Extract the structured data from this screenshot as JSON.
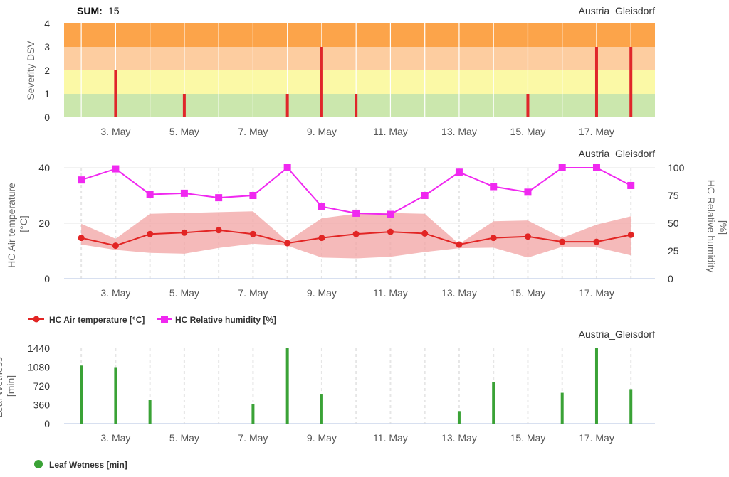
{
  "colors": {
    "band4": "#fca44a",
    "band3": "#fdcda0",
    "band2": "#fbf9a6",
    "band1": "#cbe7ad",
    "dsv_bar": "#e0262a",
    "temp": "#e22524",
    "temp_range": "#f2a3a3",
    "humidity": "#f028f0",
    "wetness": "#3aa236",
    "grid": "#e6e6e6",
    "axis_line": "#ccd6eb",
    "text": "#555555"
  },
  "header": {
    "sum_label": "SUM:",
    "sum_value": "15",
    "station": "Austria_Gleisdorf"
  },
  "x_tick_labels": [
    "3. May",
    "5. May",
    "7. May",
    "9. May",
    "11. May",
    "13. May",
    "15. May",
    "17. May"
  ],
  "chart_data": [
    {
      "type": "bar",
      "title": "Austria_Gleisdorf",
      "ylabel": "Severity DSV",
      "ylim": [
        0,
        4
      ],
      "yticks": [
        "0",
        "1",
        "2",
        "3",
        "4"
      ],
      "bands": [
        {
          "from": 0,
          "to": 1,
          "color": "band1"
        },
        {
          "from": 1,
          "to": 2,
          "color": "band2"
        },
        {
          "from": 2,
          "to": 3,
          "color": "band3"
        },
        {
          "from": 3,
          "to": 4,
          "color": "band4"
        }
      ],
      "x": [
        2,
        3,
        4,
        5,
        6,
        7,
        8,
        9,
        10,
        11,
        12,
        13,
        14,
        15,
        16,
        17,
        18
      ],
      "values": [
        0,
        2,
        0,
        1,
        0,
        0,
        1,
        3,
        1,
        0,
        0,
        0,
        0,
        1,
        0,
        3,
        3
      ]
    },
    {
      "type": "line",
      "title": "Austria_Gleisdorf",
      "ylabel": "HC Air temperature [°C]",
      "ylabel2": "HC Relative humidity [%]",
      "ylim": [
        0,
        40
      ],
      "ylim2": [
        0,
        100
      ],
      "yticks": [
        "0",
        "20",
        "40"
      ],
      "yticks2": [
        "0",
        "25",
        "50",
        "75",
        "100"
      ],
      "x": [
        2,
        3,
        4,
        5,
        6,
        7,
        8,
        9,
        10,
        11,
        12,
        13,
        14,
        15,
        16,
        17,
        18
      ],
      "series": [
        {
          "name": "HC Air temperature [°C]",
          "values": [
            14.7,
            11.9,
            16.1,
            16.6,
            17.5,
            16.1,
            12.8,
            14.7,
            16.1,
            16.9,
            16.3,
            12.3,
            14.7,
            15.2,
            13.3,
            13.3,
            15.8
          ]
        },
        {
          "name": "HC Relative humidity [%]",
          "axis": "right",
          "values": [
            89,
            99,
            76,
            77,
            73,
            75,
            100,
            65,
            59,
            58,
            75,
            96,
            83,
            78,
            100,
            100,
            84
          ]
        }
      ],
      "range": {
        "name": "HC Air temperature range",
        "low": [
          12.3,
          10.4,
          9.3,
          9.0,
          11.1,
          12.6,
          11.9,
          7.6,
          7.3,
          7.9,
          9.6,
          11.0,
          11.2,
          7.6,
          11.5,
          11.3,
          8.4
        ],
        "high": [
          19.8,
          14.4,
          23.4,
          23.7,
          24.0,
          24.3,
          13.5,
          21.8,
          23.4,
          23.7,
          23.4,
          12.5,
          20.7,
          21.0,
          14.7,
          19.5,
          22.5
        ]
      },
      "legend": [
        "HC Air temperature [°C]",
        "HC Relative humidity [%]"
      ]
    },
    {
      "type": "bar",
      "title": "Austria_Gleisdorf",
      "ylabel": "Leaf Wetness [min]",
      "ylim": [
        0,
        1440
      ],
      "yticks": [
        "0",
        "360",
        "720",
        "1080",
        "1440"
      ],
      "x": [
        2,
        3,
        4,
        5,
        6,
        7,
        8,
        9,
        10,
        11,
        12,
        13,
        14,
        15,
        16,
        17,
        18
      ],
      "values": [
        1110,
        1080,
        450,
        0,
        0,
        375,
        1440,
        570,
        0,
        0,
        0,
        240,
        800,
        0,
        590,
        1440,
        660
      ],
      "legend": [
        "Leaf Wetness [min]"
      ]
    }
  ]
}
